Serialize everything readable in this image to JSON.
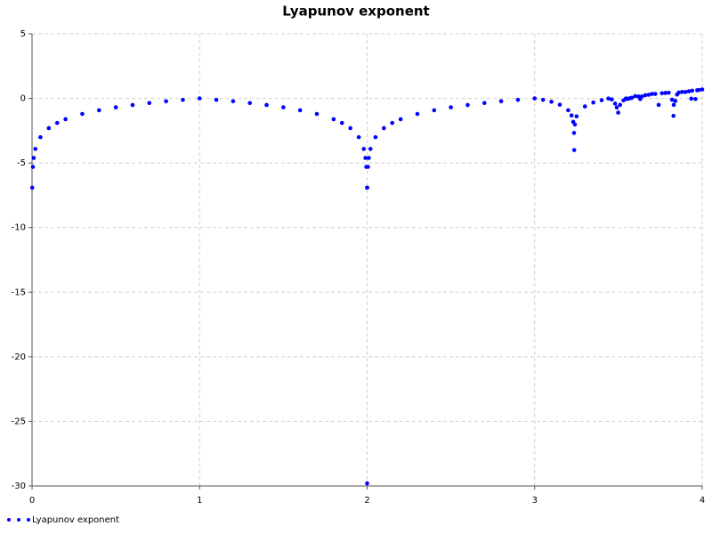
{
  "chart_data": {
    "type": "scatter",
    "title": "Lyapunov exponent",
    "x": [
      0.001,
      0.005,
      0.01,
      0.02,
      0.05,
      0.1,
      0.15,
      0.2,
      0.3,
      0.4,
      0.5,
      0.6,
      0.7,
      0.8,
      0.9,
      1.0,
      1.1,
      1.2,
      1.3,
      1.4,
      1.5,
      1.6,
      1.7,
      1.8,
      1.85,
      1.9,
      1.95,
      1.98,
      1.99,
      1.995,
      1.999,
      2.0,
      2.001,
      2.005,
      2.01,
      2.02,
      2.05,
      2.1,
      2.15,
      2.2,
      2.3,
      2.4,
      2.5,
      2.6,
      2.7,
      2.8,
      2.9,
      3.0,
      3.05,
      3.1,
      3.15,
      3.2,
      3.22,
      3.23,
      3.235,
      3.236,
      3.24,
      3.25,
      3.3,
      3.35,
      3.4,
      3.44,
      3.46,
      3.48,
      3.49,
      3.4986,
      3.51,
      3.53,
      3.544,
      3.55,
      3.56,
      3.57,
      3.58,
      3.6,
      3.62,
      3.63,
      3.64,
      3.66,
      3.68,
      3.7,
      3.72,
      3.74,
      3.76,
      3.78,
      3.8,
      3.82,
      3.8284,
      3.83,
      3.84,
      3.85,
      3.86,
      3.88,
      3.9,
      3.92,
      3.935,
      3.94,
      3.96,
      3.97,
      3.98,
      4.0
    ],
    "series": [
      {
        "name": "Lyapunov exponent",
        "color": "#0000ff",
        "values": [
          -6.91,
          -5.3,
          -4.61,
          -3.91,
          -3.0,
          -2.3,
          -1.9,
          -1.61,
          -1.2,
          -0.92,
          -0.69,
          -0.51,
          -0.36,
          -0.22,
          -0.11,
          0,
          -0.11,
          -0.22,
          -0.36,
          -0.51,
          -0.69,
          -0.92,
          -1.2,
          -1.61,
          -1.9,
          -2.3,
          -3.0,
          -3.91,
          -4.61,
          -5.3,
          -6.91,
          -29.8,
          -6.91,
          -5.3,
          -4.61,
          -3.91,
          -3.0,
          -2.3,
          -1.9,
          -1.61,
          -1.2,
          -0.92,
          -0.69,
          -0.51,
          -0.36,
          -0.22,
          -0.11,
          0,
          -0.11,
          -0.26,
          -0.49,
          -0.92,
          -1.32,
          -1.81,
          -2.67,
          -4.0,
          -2.02,
          -1.39,
          -0.62,
          -0.32,
          -0.14,
          -0.01,
          -0.08,
          -0.4,
          -0.7,
          -1.1,
          -0.5,
          -0.15,
          -0.01,
          -0.05,
          -0.02,
          0.01,
          0.05,
          0.18,
          0.15,
          -0.05,
          0.15,
          0.25,
          0.28,
          0.35,
          0.35,
          -0.5,
          0.4,
          0.42,
          0.44,
          -0.1,
          -1.35,
          -0.5,
          -0.2,
          0.3,
          0.45,
          0.5,
          0.5,
          0.55,
          -0.02,
          0.6,
          -0.05,
          0.63,
          0.65,
          0.69
        ]
      }
    ],
    "xlim": [
      0,
      4
    ],
    "xticks": [
      0,
      1,
      2,
      3,
      4
    ],
    "ylim": [
      -30,
      5
    ],
    "yticks": [
      -30,
      -25,
      -20,
      -15,
      -10,
      -5,
      0,
      5
    ],
    "grid": true,
    "legend": "bottom-left"
  }
}
